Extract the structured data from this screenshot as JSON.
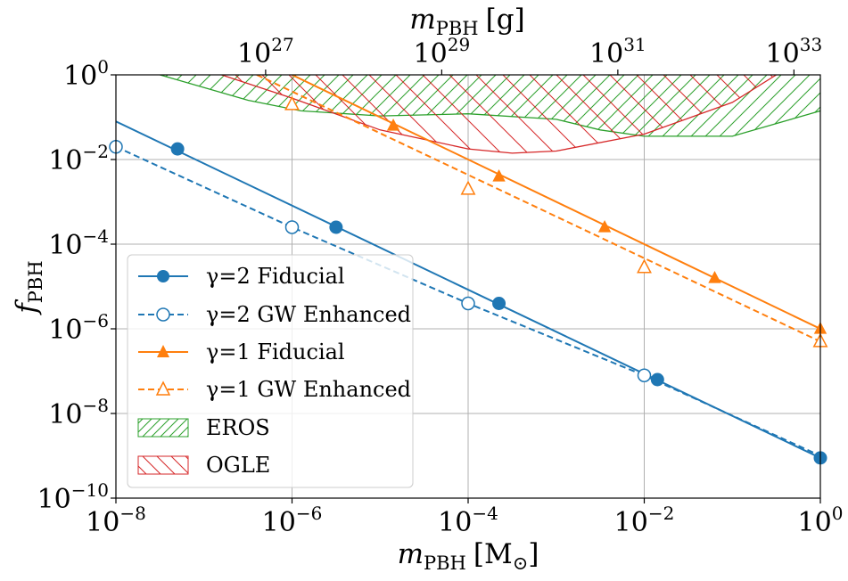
{
  "chart_data": {
    "type": "line",
    "scale": "log-log",
    "xlabel": {
      "base": "m",
      "sub": "PBH",
      "unit": "[M",
      "unit_sub": "⊙",
      "unit_close": "]"
    },
    "top_xlabel": {
      "base": "m",
      "sub": "PBH",
      "unit": "[g]"
    },
    "ylabel": {
      "base": "f",
      "sub": "PBH"
    },
    "x_log10_range": [
      -8,
      0
    ],
    "y_log10_range": [
      -10,
      0
    ],
    "x_ticks": [
      {
        "base": "10",
        "exp": "−8",
        "log10": -8
      },
      {
        "base": "10",
        "exp": "−6",
        "log10": -6
      },
      {
        "base": "10",
        "exp": "−4",
        "log10": -4
      },
      {
        "base": "10",
        "exp": "−2",
        "log10": -2
      },
      {
        "base": "10",
        "exp": "0",
        "log10": 0
      }
    ],
    "y_ticks": [
      {
        "base": "10",
        "exp": "0",
        "log10": 0
      },
      {
        "base": "10",
        "exp": "−2",
        "log10": -2
      },
      {
        "base": "10",
        "exp": "−4",
        "log10": -4
      },
      {
        "base": "10",
        "exp": "−6",
        "log10": -6
      },
      {
        "base": "10",
        "exp": "−8",
        "log10": -8
      },
      {
        "base": "10",
        "exp": "−10",
        "log10": -10
      }
    ],
    "top_ticks": [
      {
        "base": "10",
        "exp": "27",
        "log10_grams": 27
      },
      {
        "base": "10",
        "exp": "29",
        "log10_grams": 29
      },
      {
        "base": "10",
        "exp": "31",
        "log10_grams": 31
      },
      {
        "base": "10",
        "exp": "33",
        "log10_grams": 33
      }
    ],
    "solar_mass_log10_grams": 33.3,
    "grid": true,
    "legend_position": "lower-left",
    "series": [
      {
        "name": "γ=2 Fiducial",
        "color": "#1f77b4",
        "style": "solid",
        "marker": "circle-filled",
        "line_log10": [
          [
            -8,
            -1.1
          ],
          [
            0,
            -9.05
          ]
        ],
        "markers_log10": [
          [
            -7.3,
            -1.75
          ],
          [
            -5.5,
            -3.6
          ],
          [
            -3.65,
            -5.4
          ],
          [
            -1.85,
            -7.2
          ],
          [
            0,
            -9.05
          ]
        ]
      },
      {
        "name": "γ=2 GW Enhanced",
        "color": "#1f77b4",
        "style": "dashed",
        "marker": "circle-open",
        "line_log10": [
          [
            -8,
            -1.7
          ],
          [
            -6,
            -3.6
          ],
          [
            -4,
            -5.4
          ],
          [
            -2,
            -7.1
          ],
          [
            0,
            -9.0
          ]
        ],
        "markers_log10": [
          [
            -8,
            -1.7
          ],
          [
            -6,
            -3.6
          ],
          [
            -4,
            -5.4
          ],
          [
            -2,
            -7.1
          ]
        ]
      },
      {
        "name": "γ=1 Fiducial",
        "color": "#ff7f0e",
        "style": "solid",
        "marker": "triangle-filled",
        "line_log10": [
          [
            -6,
            0
          ],
          [
            0,
            -6.0
          ]
        ],
        "markers_log10": [
          [
            -4.85,
            -1.2
          ],
          [
            -3.65,
            -2.4
          ],
          [
            -2.45,
            -3.6
          ],
          [
            -1.2,
            -4.8
          ],
          [
            0,
            -6.0
          ]
        ]
      },
      {
        "name": "γ=1 GW Enhanced",
        "color": "#ff7f0e",
        "style": "dashed",
        "marker": "triangle-open",
        "line_log10": [
          [
            -6.4,
            0
          ],
          [
            0,
            -6.3
          ]
        ],
        "markers_log10": [
          [
            -6,
            -0.7
          ],
          [
            -4,
            -2.7
          ],
          [
            -2,
            -4.55
          ],
          [
            0,
            -6.3
          ]
        ]
      }
    ],
    "constraints": [
      {
        "name": "EROS",
        "color": "#2ca02c",
        "hatch": "forward",
        "boundary_log10": [
          [
            -7.5,
            0
          ],
          [
            -7.0,
            -0.3
          ],
          [
            -6.5,
            -0.6
          ],
          [
            -5.9,
            -0.85
          ],
          [
            -5.0,
            -0.97
          ],
          [
            -4.0,
            -0.92
          ],
          [
            -3.0,
            -1.05
          ],
          [
            -2.5,
            -1.3
          ],
          [
            -2.0,
            -1.45
          ],
          [
            -1.0,
            -1.45
          ],
          [
            0,
            -0.85
          ]
        ]
      },
      {
        "name": "OGLE",
        "color": "#d62728",
        "hatch": "backward",
        "boundary_log10": [
          [
            -6.8,
            0
          ],
          [
            -6.0,
            -0.55
          ],
          [
            -5.0,
            -1.3
          ],
          [
            -4.0,
            -1.75
          ],
          [
            -3.5,
            -1.85
          ],
          [
            -3.0,
            -1.8
          ],
          [
            -2.0,
            -1.4
          ],
          [
            -1.0,
            -0.65
          ],
          [
            -0.5,
            0
          ]
        ]
      }
    ]
  }
}
